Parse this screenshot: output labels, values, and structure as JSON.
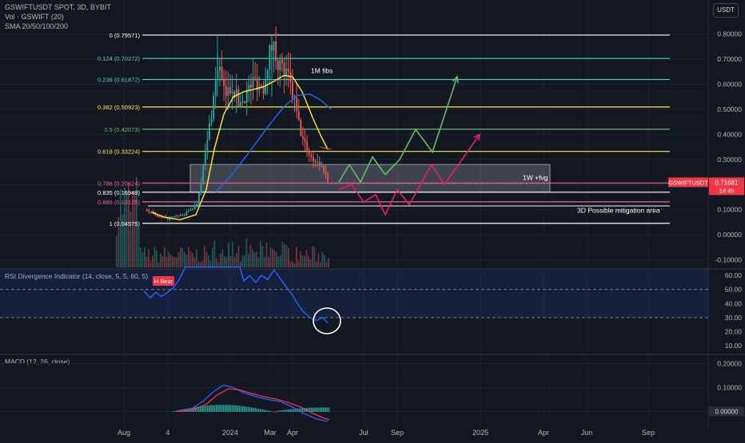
{
  "header": {
    "symbol_line": "GSWIFTUSDT SPOT, 3D, BYBIT",
    "vol_line": "Vol · GSWIFT (20)",
    "sma_line": "SMA 20/50/100/200",
    "currency": "USDT"
  },
  "colors": {
    "background": "#131722",
    "grid": "#1e222d",
    "candle_up": "#26a69a",
    "candle_down": "#ef5350",
    "fib_white": "#ffffff",
    "fib_teal": "#4dd0c9",
    "fib_yellow": "#ffeb3b",
    "fib_green": "#66bb6a",
    "fib_pink": "#f06292",
    "sma_yellow": "#ffeb3b",
    "sma_blue": "#2962ff",
    "path_green": "#66bb6a",
    "path_pink": "#e91e63",
    "rsi_line": "#2962ff",
    "macd_line": "#2962ff",
    "signal_line": "#f23645"
  },
  "chart_data": [
    {
      "type": "candlestick",
      "title": "GSWIFTUSDT SPOT, 3D, BYBIT",
      "x_tick_labels": [
        "Aug",
        "4",
        "2024",
        "Mar",
        "Apr",
        "Jul",
        "Sep",
        "2025",
        "Apr",
        "Jun",
        "Sep"
      ],
      "y_tick_labels": [
        "0.80000",
        "0.70000",
        "0.60000",
        "0.50000",
        "0.40000",
        "0.30000",
        "0.20000",
        "0.10000",
        "0.00000",
        "-0.10000"
      ],
      "ylim": [
        -0.13,
        0.84
      ],
      "last_price": {
        "symbol": "GSWIFTUSDT",
        "value": "0.71681",
        "countdown": "1d 4h",
        "y": 0.206
      },
      "fib_levels": [
        {
          "ratio": "0",
          "price": "0.79571",
          "label": "0 (0.79571)",
          "value": 0.7957,
          "color": "#ffffff"
        },
        {
          "ratio": "0.124",
          "price": "0.70272",
          "label": "0.124 (0.70272)",
          "value": 0.7027,
          "color": "#4dd0c9"
        },
        {
          "ratio": "0.236",
          "price": "0.61872",
          "label": "0.236 (0.61872)",
          "value": 0.6187,
          "color": "#4dd0c9"
        },
        {
          "ratio": "0.382",
          "price": "0.50923",
          "label": "0.382 (0.50923)",
          "value": 0.5092,
          "color": "#ffeb3b"
        },
        {
          "ratio": "0.5",
          "price": "0.42073",
          "label": "0.5 (0.42073)",
          "value": 0.4207,
          "color": "#66bb6a"
        },
        {
          "ratio": "0.618",
          "price": "0.33224",
          "label": "0.618 (0.33224)",
          "value": 0.3322,
          "color": "#ffeb3b"
        },
        {
          "ratio": "0.786",
          "price": "0.20624",
          "label": "0.786 (0.20624)",
          "value": 0.2062,
          "color": "#f06292"
        },
        {
          "ratio": "0.835",
          "price": "0.16949",
          "label": "0.835 (0.16949)",
          "value": 0.1695,
          "color": "#ffffff"
        },
        {
          "ratio": "0.886",
          "price": "0.13125",
          "label": "0.886 (0.13125)",
          "value": 0.1312,
          "color": "#f06292"
        },
        {
          "ratio": "1",
          "price": "0.04575",
          "label": "1 (0.04575)",
          "value": 0.0457,
          "color": "#ffffff"
        }
      ],
      "annotations": {
        "fib_title": "1M fibs",
        "fvg_label": "1W +fvg",
        "mitigation_label": "3D Possible mitigation area",
        "fvg_zone": [
          0.17,
          0.28
        ]
      }
    },
    {
      "type": "line",
      "title": "RSI Divergence Indicator (14, close, 5, 5, 60, 5)",
      "y_tick_labels": [
        "60.00",
        "50.00",
        "40.00",
        "30.00",
        "20.00",
        "10.00"
      ],
      "ylim": [
        5,
        64
      ],
      "bands": [
        30,
        50
      ],
      "signal_label": "H Bear"
    },
    {
      "type": "bar",
      "title": "MACD (12, 26, close)",
      "y_tick_labels": [
        "0.20000",
        "0.10000",
        "0.00000"
      ],
      "ylim": [
        -0.055,
        0.235
      ]
    }
  ]
}
